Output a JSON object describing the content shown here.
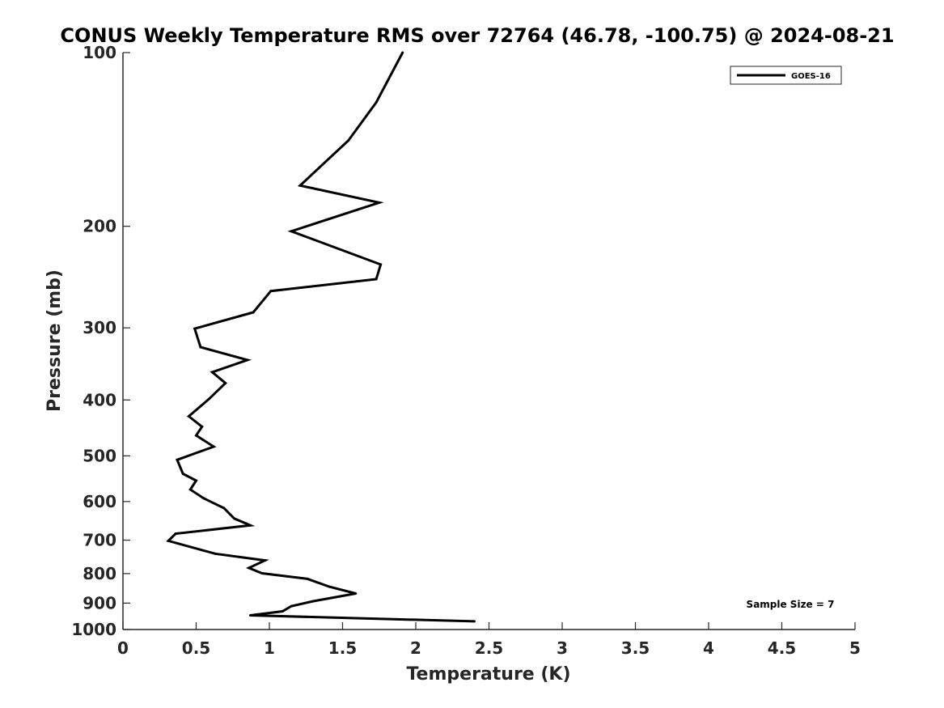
{
  "chart_data": {
    "type": "line",
    "title": "CONUS Weekly Temperature RMS over 72764 (46.78, -100.75) @ 2024-08-21",
    "xlabel": "Temperature (K)",
    "ylabel": "Pressure (mb)",
    "xlim": [
      0,
      5
    ],
    "ylim": [
      100,
      1000
    ],
    "y_scale": "log",
    "y_reversed": false,
    "x_ticks": [
      "0",
      "0.5",
      "1",
      "1.5",
      "2",
      "2.5",
      "3",
      "3.5",
      "4",
      "4.5",
      "5"
    ],
    "x_tick_values": [
      0,
      0.5,
      1,
      1.5,
      2,
      2.5,
      3,
      3.5,
      4,
      4.5,
      5
    ],
    "y_ticks": [
      "100",
      "200",
      "300",
      "400",
      "500",
      "600",
      "700",
      "800",
      "900",
      "1000"
    ],
    "y_tick_values": [
      100,
      200,
      300,
      400,
      500,
      600,
      700,
      800,
      900,
      1000
    ],
    "grid": false,
    "legend_position": "top-right",
    "annotation": "Sample Size = 7",
    "series": [
      {
        "name": "GOES-16",
        "color": "#000000",
        "x": [
          1.91,
          1.73,
          1.54,
          1.21,
          1.75,
          1.15,
          1.76,
          1.73,
          1.01,
          0.89,
          0.49,
          0.53,
          0.85,
          0.61,
          0.7,
          0.59,
          0.45,
          0.54,
          0.5,
          0.62,
          0.37,
          0.41,
          0.5,
          0.46,
          0.55,
          0.69,
          0.76,
          0.87,
          0.36,
          0.31,
          0.63,
          0.97,
          0.86,
          0.95,
          1.26,
          1.41,
          1.59,
          1.3,
          1.15,
          1.09,
          0.87,
          2.4
        ],
        "y": [
          100,
          122,
          142,
          170,
          182,
          204,
          233,
          247,
          259,
          282,
          301,
          324,
          341,
          358,
          374,
          398,
          427,
          445,
          461,
          482,
          508,
          537,
          552,
          572,
          592,
          616,
          642,
          660,
          682,
          702,
          739,
          759,
          782,
          799,
          817,
          843,
          866,
          893,
          911,
          930,
          945,
          968
        ]
      }
    ]
  }
}
